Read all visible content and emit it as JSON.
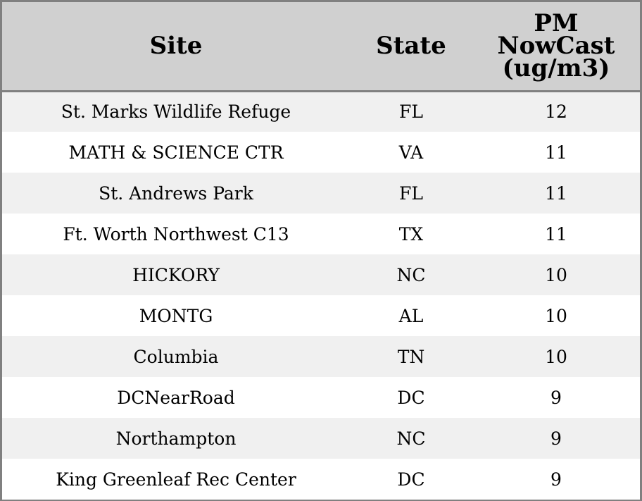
{
  "chart_data": {
    "type": "table",
    "columns": [
      {
        "key": "site",
        "label": "Site"
      },
      {
        "key": "state",
        "label": "State"
      },
      {
        "key": "pm",
        "label": "PM NowCast (ug/m3)",
        "label_lines": [
          "PM",
          "NowCast",
          "(ug/m3)"
        ]
      }
    ],
    "rows": [
      {
        "site": "St. Marks Wildlife Refuge",
        "state": "FL",
        "pm": 12
      },
      {
        "site": "MATH & SCIENCE CTR",
        "state": "VA",
        "pm": 11
      },
      {
        "site": "St. Andrews Park",
        "state": "FL",
        "pm": 11
      },
      {
        "site": "Ft. Worth Northwest C13",
        "state": "TX",
        "pm": 11
      },
      {
        "site": "HICKORY",
        "state": "NC",
        "pm": 10
      },
      {
        "site": "MONTG",
        "state": "AL",
        "pm": 10
      },
      {
        "site": "Columbia",
        "state": "TN",
        "pm": 10
      },
      {
        "site": "DCNearRoad",
        "state": "DC",
        "pm": 9
      },
      {
        "site": "Northampton",
        "state": "NC",
        "pm": 9
      },
      {
        "site": "King Greenleaf Rec Center",
        "state": "DC",
        "pm": 9
      }
    ],
    "colors": {
      "header_bg": "#d0d0d0",
      "row_odd_bg": "#f0f0f0",
      "row_even_bg": "#ffffff",
      "border": "#808080"
    }
  }
}
